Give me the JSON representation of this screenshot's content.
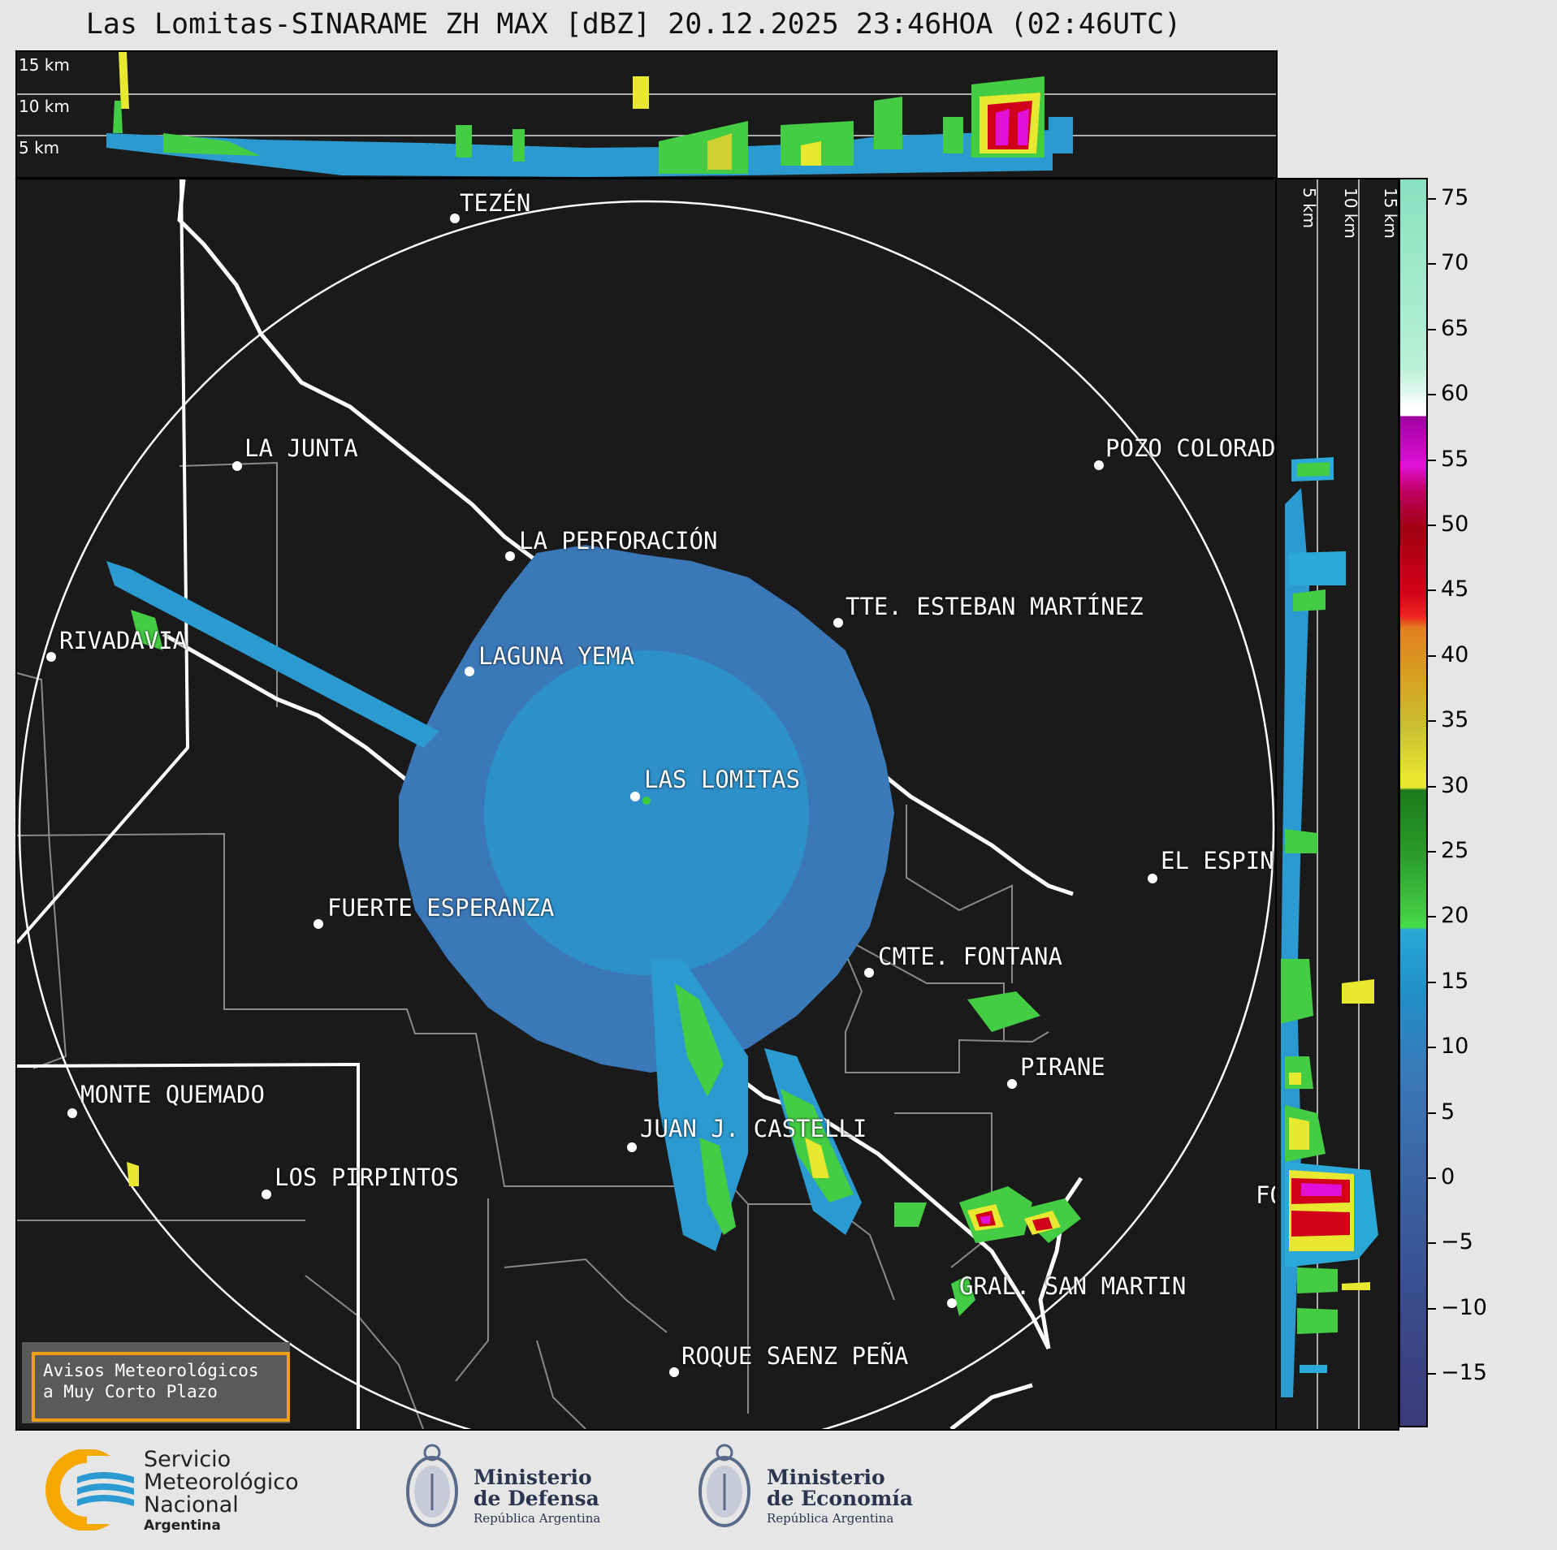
{
  "title": "Las Lomitas-SINARAME ZH MAX [dBZ] 20.12.2025 23:46HOA (02:46UTC)",
  "top_altitudes": [
    "15 km",
    "10 km",
    "5 km"
  ],
  "side_altitudes": [
    "5 km",
    "10 km",
    "15 km"
  ],
  "colorbar": {
    "ticks": [
      "75",
      "70",
      "65",
      "60",
      "55",
      "50",
      "45",
      "40",
      "35",
      "30",
      "25",
      "20",
      "15",
      "10",
      "5",
      "0",
      "−5",
      "−10",
      "−15"
    ],
    "colors": {
      "cyan": "#2aa8d8",
      "blue": "#3a78b8",
      "green": "#3ccc3c",
      "yellow": "#e8e830",
      "orange": "#e09020",
      "red": "#d00018",
      "magenta": "#e010d8",
      "white": "#ffffff",
      "mint": "#88e0c0"
    }
  },
  "cities": [
    {
      "name": "TEZÉN"
    },
    {
      "name": "LA JUNTA"
    },
    {
      "name": "POZO COLORADO"
    },
    {
      "name": "LA PERFORACIÓN"
    },
    {
      "name": "TTE. ESTEBAN MARTÍNEZ"
    },
    {
      "name": "RIVADAVIA"
    },
    {
      "name": "LAGUNA YEMA"
    },
    {
      "name": "LAS LOMITAS"
    },
    {
      "name": "EL ESPINILLO"
    },
    {
      "name": "FUERTE ESPERANZA"
    },
    {
      "name": "CMTE. FONTANA"
    },
    {
      "name": "PIRANE"
    },
    {
      "name": "MONTE QUEMADO"
    },
    {
      "name": "JUAN J. CASTELLI"
    },
    {
      "name": "LOS PIRPINTOS"
    },
    {
      "name": "GRAL. SAN MARTIN"
    },
    {
      "name": "ROQUE SAENZ PEÑA"
    },
    {
      "name": "FORMOSA"
    }
  ],
  "warning": {
    "line1": "Avisos Meteorológicos",
    "line2": "a Muy Corto Plazo"
  },
  "footer": {
    "smn": {
      "line1": "Servicio",
      "line2": "Meteorológico",
      "line3": "Nacional",
      "line4": "Argentina"
    },
    "defensa": {
      "line1": "Ministerio",
      "line2": "de Defensa",
      "line3": "República Argentina"
    },
    "economia": {
      "line1": "Ministerio",
      "line2": "de Economía",
      "line3": "República Argentina"
    }
  }
}
